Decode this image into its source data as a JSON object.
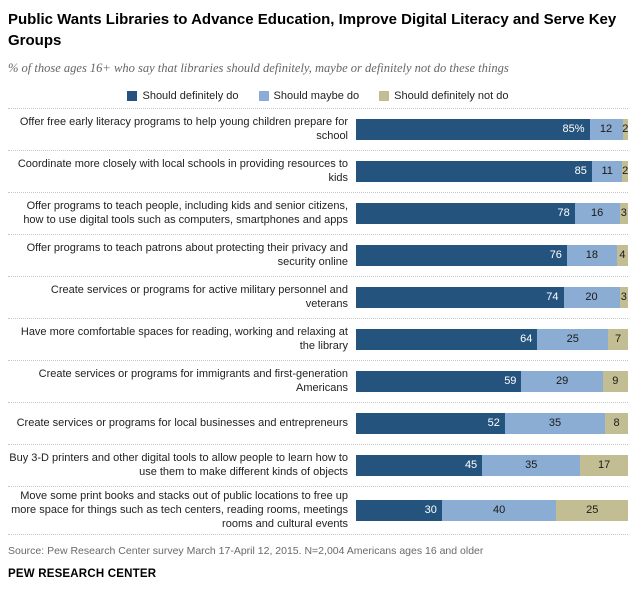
{
  "title": "Public Wants Libraries to Advance Education, Improve Digital Literacy and Serve Key Groups",
  "subtitle": "% of those ages 16+ who say that libraries should definitely, maybe or definitely not do these things",
  "legend": [
    {
      "label": "Should definitely do",
      "color": "#24537d"
    },
    {
      "label": "Should maybe do",
      "color": "#8badd3"
    },
    {
      "label": "Should definitely not do",
      "color": "#c3bd94"
    }
  ],
  "chart_data": {
    "type": "bar",
    "orientation": "horizontal",
    "stacked": true,
    "legend_position": "top",
    "value_labels": "inside",
    "first_value_suffix": "%",
    "categories": [
      "Offer free early literacy programs to help young children prepare for school",
      "Coordinate more closely with local schools in providing resources to kids",
      "Offer programs to teach people, including kids and senior citizens, how to use digital tools such as computers, smartphones and apps",
      "Offer programs to teach patrons about protecting their privacy and security online",
      "Create services or programs for active military personnel and veterans",
      "Have more comfortable spaces for reading, working and relaxing at the library",
      "Create services or programs for immigrants and first-generation Americans",
      "Create services or programs for local businesses and entrepreneurs",
      "Buy 3-D printers and other digital tools to allow people to learn how to use them to make different kinds of objects",
      "Move some print books and stacks out of public locations to free up more space for things such as tech centers, reading rooms, meetings rooms and cultural events"
    ],
    "series": [
      {
        "name": "Should definitely do",
        "color": "#24537d",
        "values": [
          85,
          85,
          78,
          76,
          74,
          64,
          59,
          52,
          45,
          30
        ]
      },
      {
        "name": "Should maybe do",
        "color": "#8badd3",
        "values": [
          12,
          11,
          16,
          18,
          20,
          25,
          29,
          35,
          35,
          40
        ]
      },
      {
        "name": "Should definitely not do",
        "color": "#c3bd94",
        "values": [
          2,
          2,
          3,
          4,
          3,
          7,
          9,
          8,
          17,
          25
        ]
      }
    ],
    "xlim": [
      0,
      100
    ]
  },
  "source": "Source: Pew Research Center survey March 17-April 12, 2015. N=2,004 Americans ages 16 and older",
  "footer": "PEW RESEARCH CENTER"
}
